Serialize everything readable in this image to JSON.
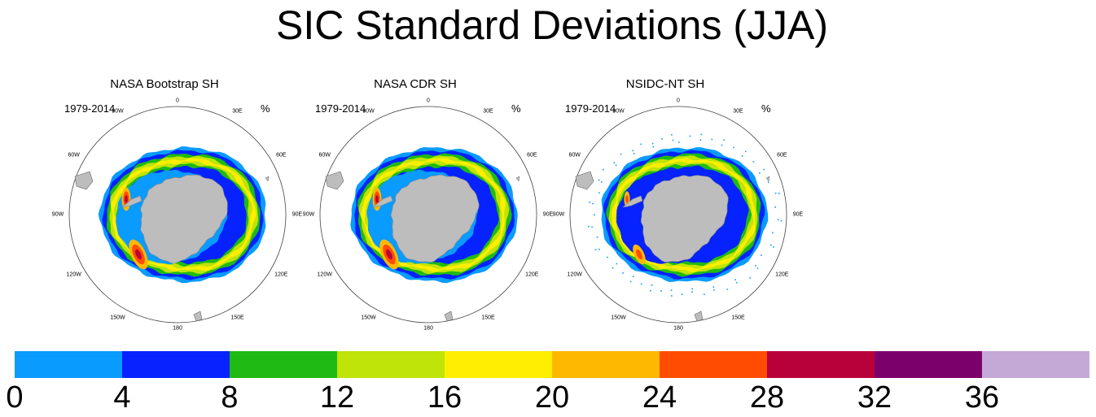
{
  "title": "SIC Standard Deviations (JJA)",
  "units": "%",
  "panels": [
    {
      "title": "NASA Bootstrap SH",
      "period": "1979-2014",
      "variant": "bootstrap"
    },
    {
      "title": "NASA CDR SH",
      "period": "1979-2014",
      "variant": "cdr"
    },
    {
      "title": "NSIDC-NT SH",
      "period": "1979-2014",
      "variant": "nt"
    }
  ],
  "longitude_labels": [
    "0",
    "30E",
    "60E",
    "90E",
    "120E",
    "150E",
    "180",
    "150W",
    "120W",
    "90W",
    "60W",
    "30W"
  ],
  "colorbar": {
    "colors": [
      "#0a9bff",
      "#0522ff",
      "#1fba14",
      "#bfe407",
      "#ffee00",
      "#ffb800",
      "#ff4c00",
      "#b8003a",
      "#7c006b",
      "#c4a8d6"
    ],
    "tick_labels": [
      "0",
      "4",
      "8",
      "12",
      "16",
      "20",
      "24",
      "28",
      "32",
      "36"
    ]
  },
  "land_color": "#bdbdbd"
}
